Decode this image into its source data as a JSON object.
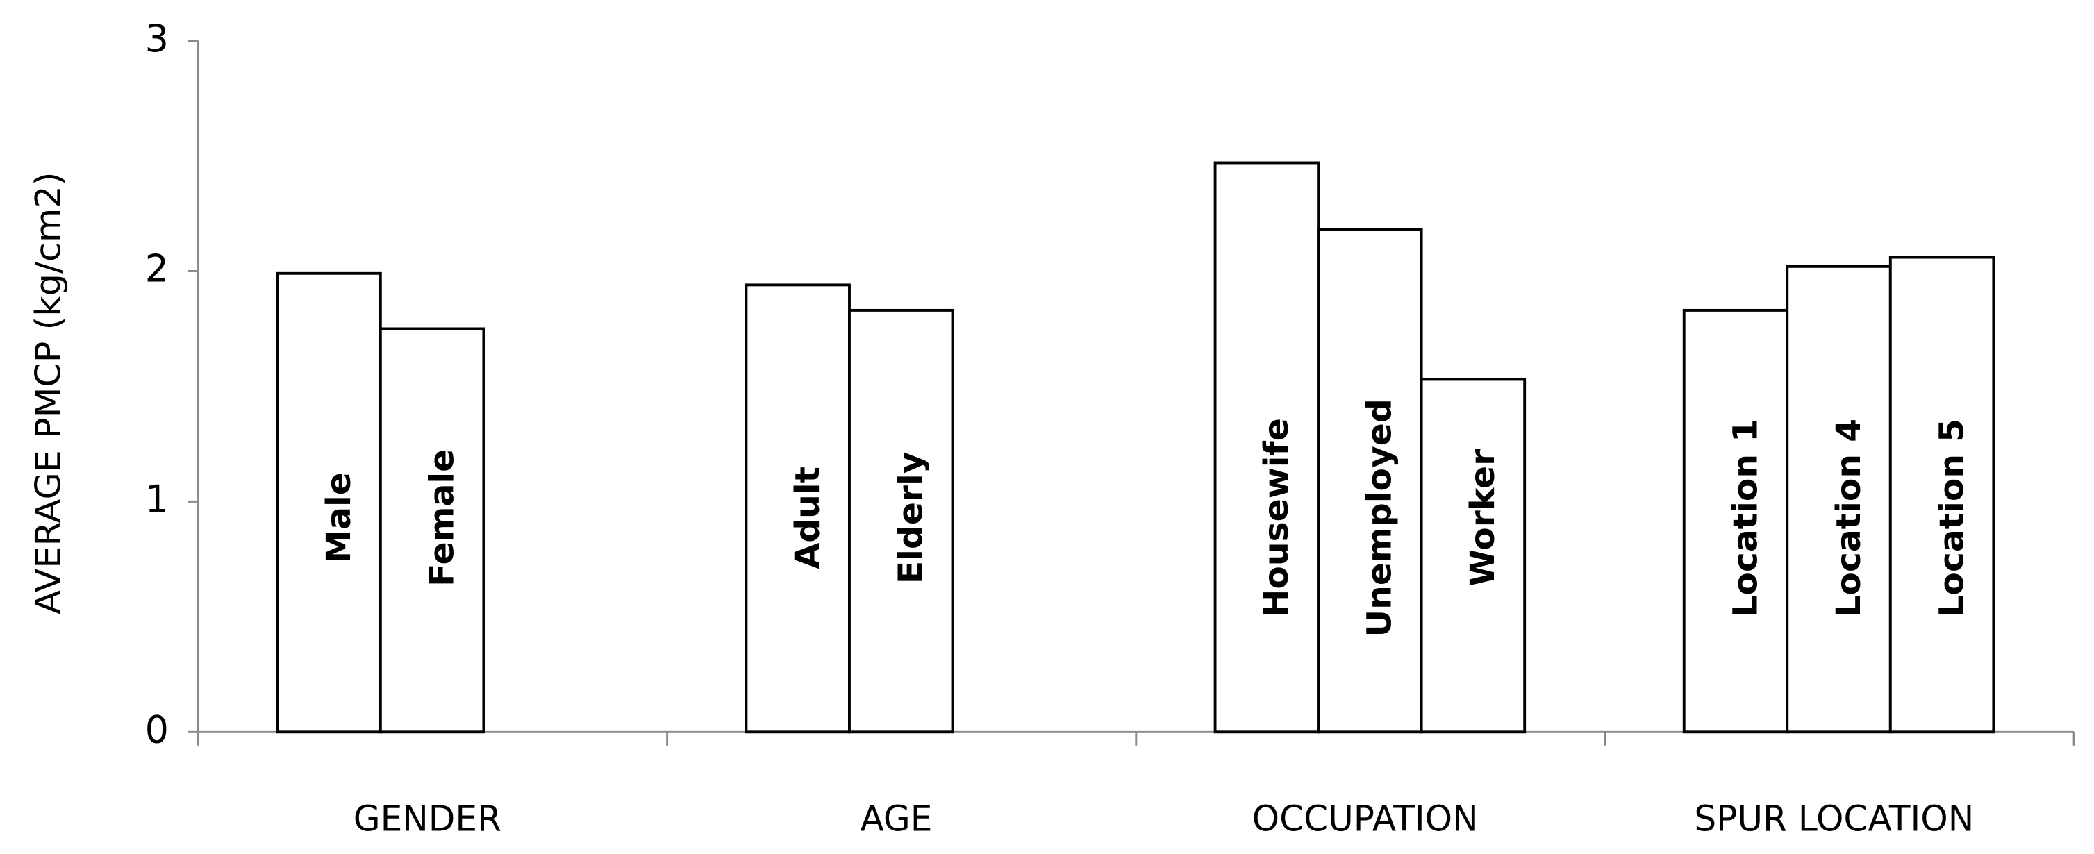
{
  "chart_data": {
    "type": "bar",
    "y_label": "AVERAGE PMCP (kg/cm2)",
    "groups": [
      {
        "name": "GENDER",
        "labels": [
          "Male",
          "Female"
        ],
        "values": [
          1.99,
          1.75
        ]
      },
      {
        "name": "AGE",
        "labels": [
          "Adult",
          "Elderly"
        ],
        "values": [
          1.94,
          1.83
        ]
      },
      {
        "name": "OCCUPATION",
        "labels": [
          "Housewife",
          "Unemployed",
          "Worker"
        ],
        "values": [
          2.47,
          2.18,
          1.53
        ]
      },
      {
        "name": "SPUR LOCATION",
        "labels": [
          "Location 1",
          "Location 4",
          "Location 5"
        ],
        "values": [
          1.83,
          2.02,
          2.06
        ]
      }
    ],
    "color": "#ffffff",
    "ylim": [
      0,
      3
    ],
    "yticks": [
      0,
      1,
      2,
      3
    ],
    "grid": false
  }
}
